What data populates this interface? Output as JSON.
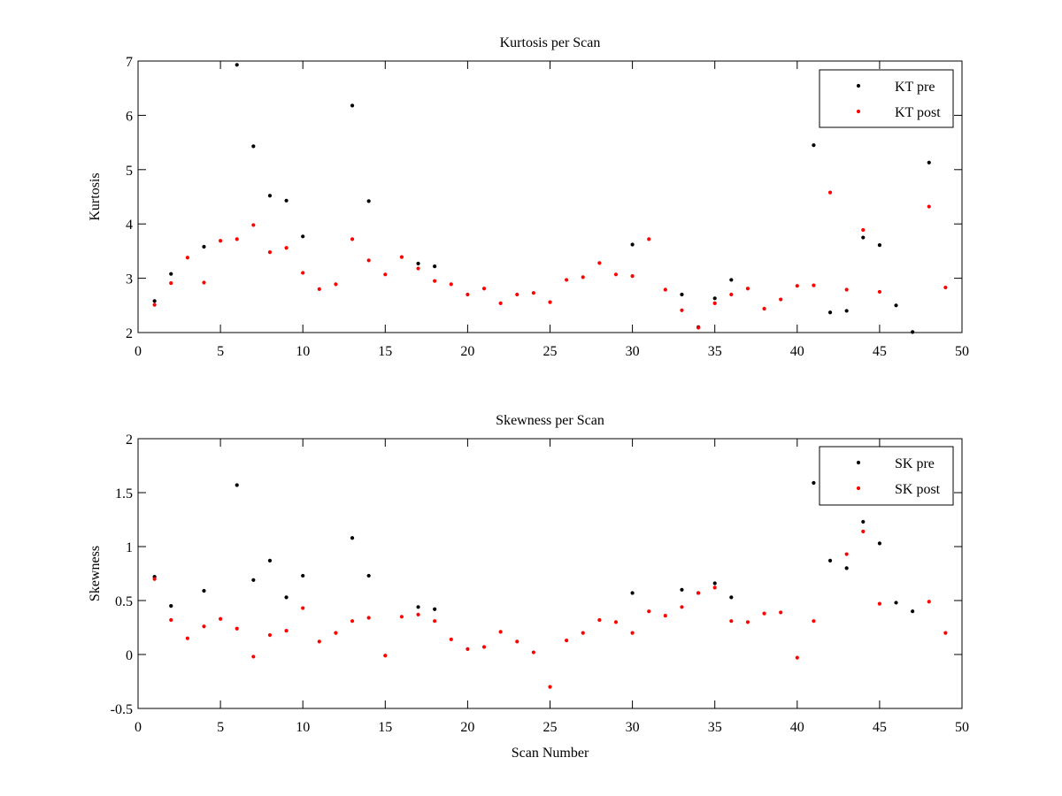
{
  "chart_data": [
    {
      "type": "scatter",
      "title": "Kurtosis per Scan",
      "xlabel": "",
      "ylabel": "Kurtosis",
      "xlim": [
        0,
        50
      ],
      "ylim": [
        2,
        7
      ],
      "xticks": [
        0,
        5,
        10,
        15,
        20,
        25,
        30,
        35,
        40,
        45,
        50
      ],
      "yticks": [
        2,
        3,
        4,
        5,
        6,
        7
      ],
      "grid": false,
      "legend_position": "top-right",
      "series": [
        {
          "name": "KT pre",
          "color": "#000000",
          "points": [
            [
              1,
              2.58
            ],
            [
              2,
              3.08
            ],
            [
              4,
              3.58
            ],
            [
              6,
              6.93
            ],
            [
              7,
              5.43
            ],
            [
              8,
              4.52
            ],
            [
              9,
              4.43
            ],
            [
              10,
              3.77
            ],
            [
              13,
              6.18
            ],
            [
              14,
              4.42
            ],
            [
              17,
              3.27
            ],
            [
              18,
              3.22
            ],
            [
              30,
              3.62
            ],
            [
              33,
              2.7
            ],
            [
              34,
              2.1
            ],
            [
              35,
              2.63
            ],
            [
              36,
              2.97
            ],
            [
              41,
              5.45
            ],
            [
              42,
              2.37
            ],
            [
              43,
              2.4
            ],
            [
              44,
              3.75
            ],
            [
              45,
              3.61
            ],
            [
              46,
              2.5
            ],
            [
              47,
              2.01
            ],
            [
              48,
              5.13
            ]
          ]
        },
        {
          "name": "KT post",
          "color": "#ff0000",
          "points": [
            [
              1,
              2.51
            ],
            [
              2,
              2.91
            ],
            [
              3,
              3.38
            ],
            [
              4,
              2.92
            ],
            [
              5,
              3.69
            ],
            [
              6,
              3.72
            ],
            [
              7,
              3.98
            ],
            [
              8,
              3.48
            ],
            [
              9,
              3.56
            ],
            [
              10,
              3.1
            ],
            [
              11,
              2.8
            ],
            [
              12,
              2.89
            ],
            [
              13,
              3.72
            ],
            [
              14,
              3.33
            ],
            [
              15,
              3.07
            ],
            [
              16,
              3.39
            ],
            [
              17,
              3.18
            ],
            [
              18,
              2.95
            ],
            [
              19,
              2.89
            ],
            [
              20,
              2.7
            ],
            [
              21,
              2.81
            ],
            [
              22,
              2.54
            ],
            [
              23,
              2.7
            ],
            [
              24,
              2.73
            ],
            [
              25,
              2.56
            ],
            [
              26,
              2.97
            ],
            [
              27,
              3.02
            ],
            [
              28,
              3.28
            ],
            [
              29,
              3.07
            ],
            [
              30,
              3.04
            ],
            [
              31,
              3.72
            ],
            [
              32,
              2.79
            ],
            [
              33,
              2.41
            ],
            [
              34,
              2.09
            ],
            [
              35,
              2.54
            ],
            [
              36,
              2.7
            ],
            [
              37,
              2.81
            ],
            [
              38,
              2.44
            ],
            [
              39,
              2.61
            ],
            [
              40,
              2.86
            ],
            [
              41,
              2.87
            ],
            [
              42,
              4.58
            ],
            [
              43,
              2.79
            ],
            [
              44,
              3.89
            ],
            [
              45,
              2.75
            ],
            [
              48,
              4.32
            ],
            [
              49,
              2.83
            ]
          ]
        }
      ]
    },
    {
      "type": "scatter",
      "title": "Skewness per Scan",
      "xlabel": "Scan Number",
      "ylabel": "Skewness",
      "xlim": [
        0,
        50
      ],
      "ylim": [
        -0.5,
        2
      ],
      "xticks": [
        0,
        5,
        10,
        15,
        20,
        25,
        30,
        35,
        40,
        45,
        50
      ],
      "yticks": [
        -0.5,
        0,
        0.5,
        1,
        1.5,
        2
      ],
      "ytick_labels": [
        "-0.5",
        "0",
        "0.5",
        "1",
        "1.5",
        "2"
      ],
      "grid": false,
      "legend_position": "top-right",
      "series": [
        {
          "name": "SK pre",
          "color": "#000000",
          "points": [
            [
              1,
              0.72
            ],
            [
              2,
              0.45
            ],
            [
              4,
              0.59
            ],
            [
              6,
              1.57
            ],
            [
              7,
              0.69
            ],
            [
              8,
              0.87
            ],
            [
              9,
              0.53
            ],
            [
              10,
              0.73
            ],
            [
              13,
              1.08
            ],
            [
              14,
              0.73
            ],
            [
              17,
              0.44
            ],
            [
              18,
              0.42
            ],
            [
              30,
              0.57
            ],
            [
              33,
              0.6
            ],
            [
              34,
              0.57
            ],
            [
              35,
              0.66
            ],
            [
              36,
              0.53
            ],
            [
              41,
              1.59
            ],
            [
              42,
              0.87
            ],
            [
              43,
              0.8
            ],
            [
              44,
              1.23
            ],
            [
              45,
              1.03
            ],
            [
              46,
              0.48
            ],
            [
              47,
              0.4
            ]
          ]
        },
        {
          "name": "SK post",
          "color": "#ff0000",
          "points": [
            [
              1,
              0.7
            ],
            [
              2,
              0.32
            ],
            [
              3,
              0.15
            ],
            [
              4,
              0.26
            ],
            [
              5,
              0.33
            ],
            [
              6,
              0.24
            ],
            [
              7,
              -0.02
            ],
            [
              8,
              0.18
            ],
            [
              9,
              0.22
            ],
            [
              10,
              0.43
            ],
            [
              11,
              0.12
            ],
            [
              12,
              0.2
            ],
            [
              13,
              0.31
            ],
            [
              14,
              0.34
            ],
            [
              15,
              -0.01
            ],
            [
              16,
              0.35
            ],
            [
              17,
              0.37
            ],
            [
              18,
              0.31
            ],
            [
              19,
              0.14
            ],
            [
              20,
              0.05
            ],
            [
              21,
              0.07
            ],
            [
              22,
              0.21
            ],
            [
              23,
              0.12
            ],
            [
              24,
              0.02
            ],
            [
              25,
              -0.3
            ],
            [
              26,
              0.13
            ],
            [
              27,
              0.2
            ],
            [
              28,
              0.32
            ],
            [
              29,
              0.3
            ],
            [
              30,
              0.2
            ],
            [
              31,
              0.4
            ],
            [
              32,
              0.36
            ],
            [
              33,
              0.44
            ],
            [
              34,
              0.57
            ],
            [
              35,
              0.62
            ],
            [
              36,
              0.31
            ],
            [
              37,
              0.3
            ],
            [
              38,
              0.38
            ],
            [
              39,
              0.39
            ],
            [
              40,
              -0.03
            ],
            [
              41,
              0.31
            ],
            [
              43,
              0.93
            ],
            [
              44,
              1.14
            ],
            [
              45,
              0.47
            ],
            [
              48,
              0.49
            ],
            [
              49,
              0.2
            ]
          ]
        }
      ]
    }
  ]
}
